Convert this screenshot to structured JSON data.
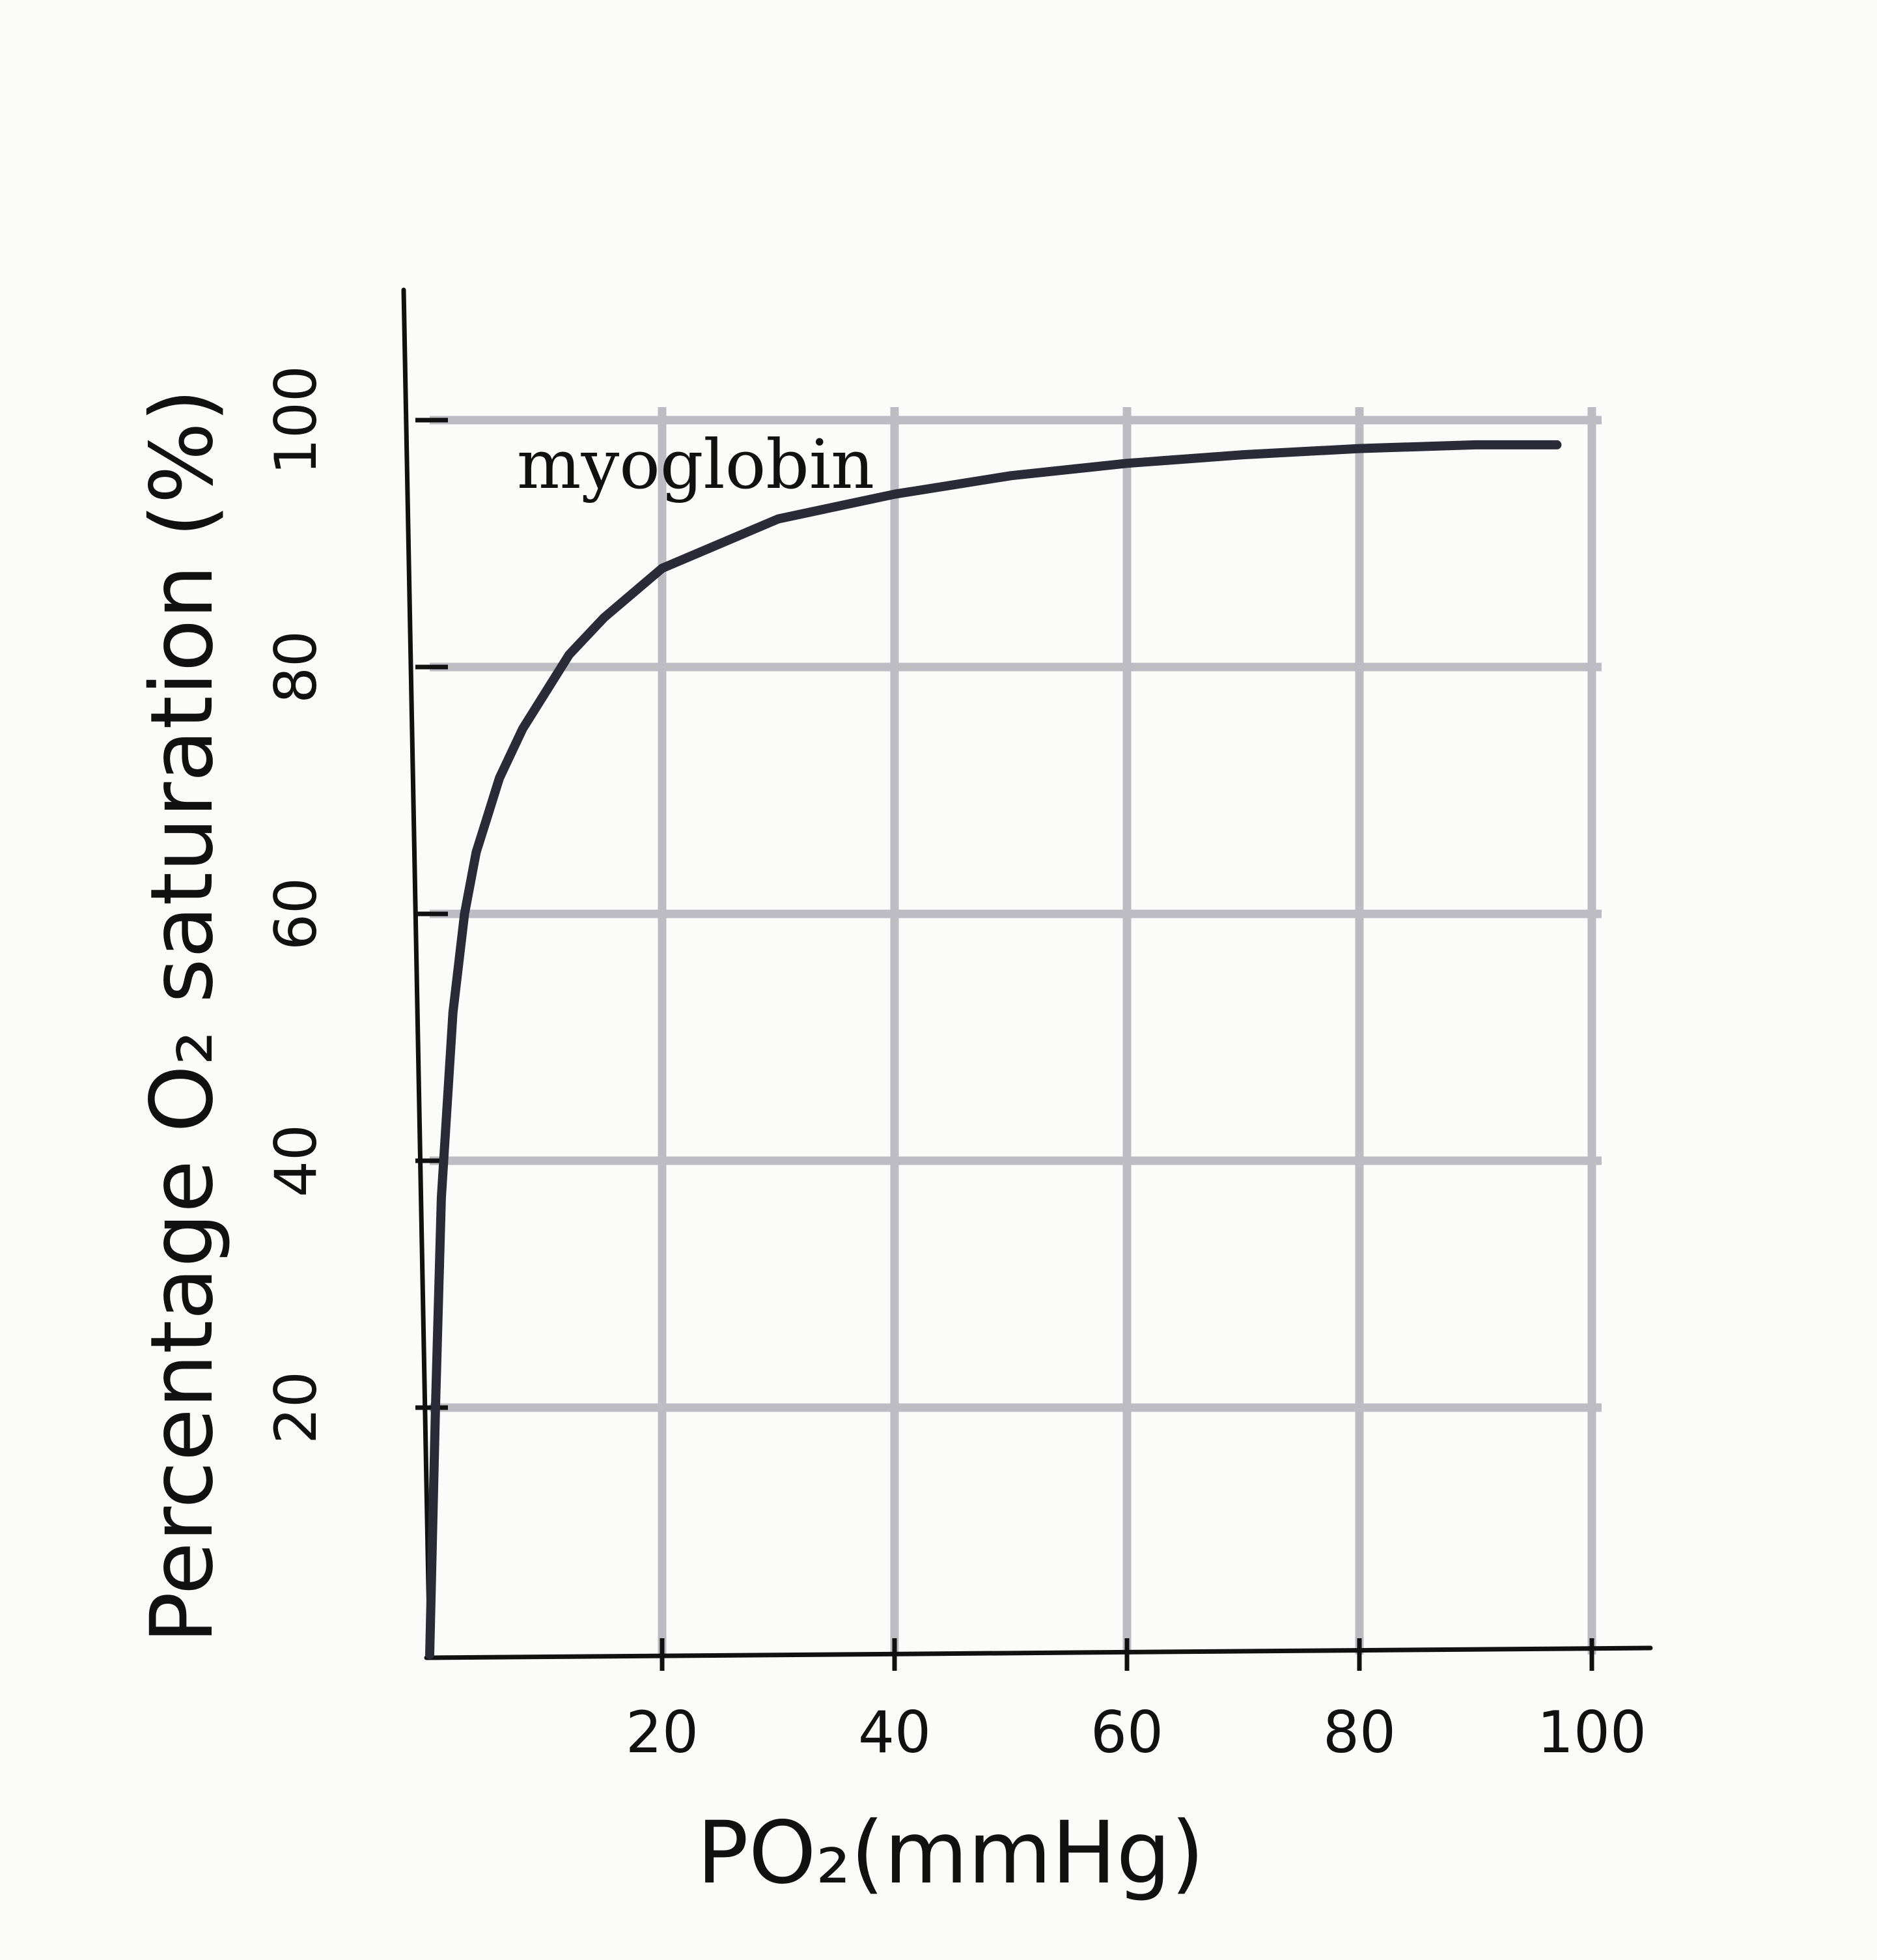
{
  "chart_data": {
    "type": "line",
    "title": "",
    "xlabel": "PO₂(mmHg)",
    "ylabel": "Percentage O₂ saturation (%)",
    "xlim": [
      0,
      100
    ],
    "ylim": [
      0,
      100
    ],
    "x_ticks": [
      "20",
      "40",
      "60",
      "80",
      "100"
    ],
    "y_ticks": [
      "20",
      "40",
      "60",
      "80",
      "100"
    ],
    "grid": true,
    "series": [
      {
        "name": "myoglobin",
        "x": [
          0,
          0.5,
          1,
          2,
          3,
          4,
          5,
          6,
          8,
          10,
          12,
          15,
          20,
          25,
          30,
          35,
          40,
          50,
          60,
          70,
          80,
          90,
          97
        ],
        "y": [
          0,
          20,
          37,
          52,
          60,
          65,
          68,
          71,
          75,
          78,
          81,
          84,
          88,
          90,
          92,
          93,
          94,
          95.5,
          96.5,
          97.2,
          97.7,
          98.0,
          98.0
        ]
      }
    ],
    "colors": {
      "curve": "#2b2a37",
      "grid": "#bdbcc2",
      "axis": "#111111"
    }
  }
}
